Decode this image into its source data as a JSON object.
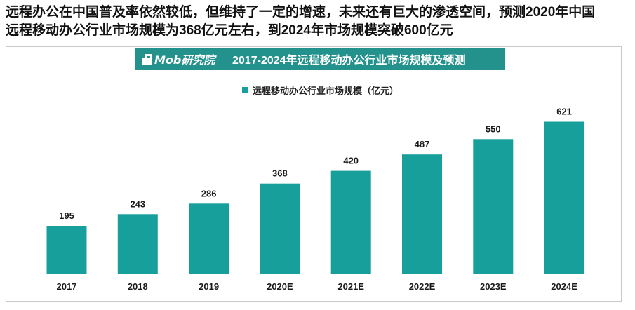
{
  "headline": {
    "line1": "远程办公在中国普及率依然较低，但维持了一定的增速，未来还有巨大的渗透空间，预测2020年中国",
    "line2": "远程移动办公行业市场规模为368亿元左右，到2024年市场规模突破600亿元"
  },
  "chart_header": {
    "logo_text": "Mob研究院",
    "logo_icon": "mob-logo-icon"
  },
  "colors": {
    "bar": "#17a09b",
    "header": "#23918c",
    "axis": "#d9d9d9"
  },
  "chart_data": {
    "type": "bar",
    "title": "2017-2024年远程移动办公行业市场规模及预测",
    "categories": [
      "2017",
      "2018",
      "2019",
      "2020E",
      "2021E",
      "2022E",
      "2023E",
      "2024E"
    ],
    "series": [
      {
        "name": "远程移动办公行业市场规模（亿元）",
        "values": [
          195,
          243,
          286,
          368,
          420,
          487,
          550,
          621
        ]
      }
    ],
    "data_labels": true,
    "grid": false,
    "legend": "top-center"
  }
}
